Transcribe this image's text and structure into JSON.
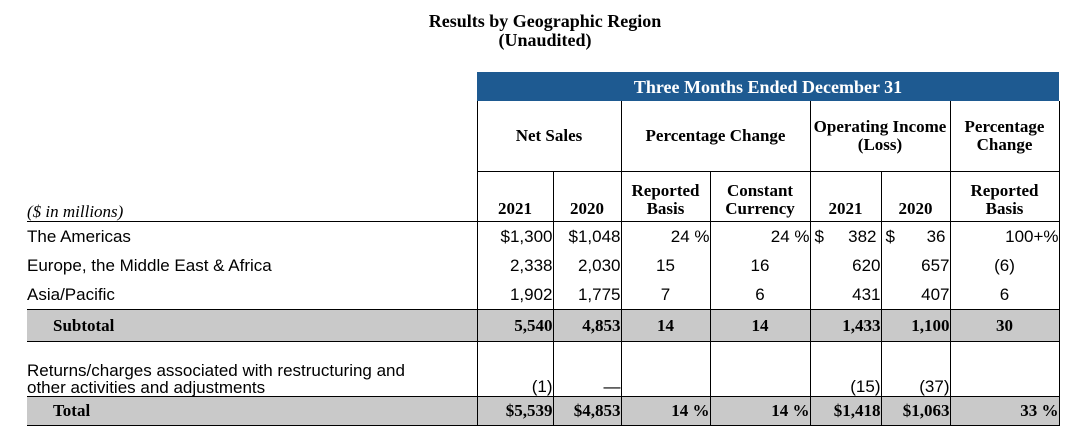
{
  "title": {
    "line1": "Results by Geographic Region",
    "line2": "(Unaudited)"
  },
  "header": {
    "banner": "Three Months Ended December 31",
    "net_sales": "Net Sales",
    "pct_change": "Percentage Change",
    "op_income": "Operating Income (Loss)",
    "pct_change2": "Percentage Change",
    "units": "($ in millions)",
    "col_2021": "2021",
    "col_2020": "2020",
    "reported_basis": "Reported Basis",
    "constant_currency": "Constant Currency",
    "op_2021": "2021",
    "op_2020": "2020",
    "reported_basis2": "Reported Basis"
  },
  "rows": [
    {
      "label": "The Americas",
      "ns2021": "$1,300",
      "ns2020": "$1,048",
      "rep": "24 %",
      "cc": "24 %",
      "op2021_sym": "$",
      "op2021": "382",
      "op2020_sym": "$",
      "op2020": "36",
      "rep2": "100+%"
    },
    {
      "label": "Europe, the Middle East & Africa",
      "ns2021": "2,338",
      "ns2020": "2,030",
      "rep": "15",
      "cc": "16",
      "op2021": "620",
      "op2020": "657",
      "rep2": "(6)"
    },
    {
      "label": "Asia/Pacific",
      "ns2021": "1,902",
      "ns2020": "1,775",
      "rep": "7",
      "cc": "6",
      "op2021": "431",
      "op2020": "407",
      "rep2": "6"
    }
  ],
  "subtotal": {
    "label": "Subtotal",
    "ns2021": "5,540",
    "ns2020": "4,853",
    "rep": "14",
    "cc": "14",
    "op2021": "1,433",
    "op2020": "1,100",
    "rep2": "30"
  },
  "restructuring": {
    "label_line1": "Returns/charges associated with restructuring and",
    "label_line2": "other activities and adjustments",
    "ns2021": "(1)",
    "ns2020": "—",
    "op2021": "(15)",
    "op2020": "(37)"
  },
  "total": {
    "label": "Total",
    "ns2021": "$5,539",
    "ns2020": "$4,853",
    "rep": "14 %",
    "cc": "14 %",
    "op2021": "$1,418",
    "op2020": "$1,063",
    "rep2": "33 %"
  }
}
